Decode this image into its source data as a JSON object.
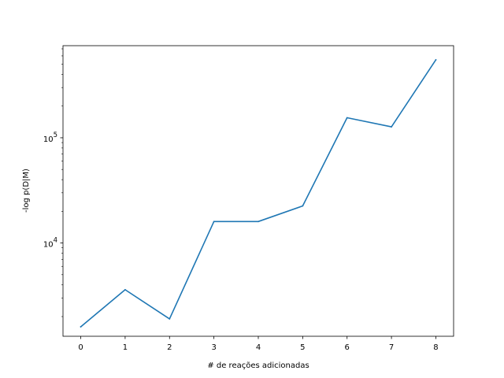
{
  "chart_data": {
    "type": "line",
    "title": "",
    "xlabel": "# de reações adicionadas",
    "ylabel": "-log p(D|M)",
    "yscale": "log",
    "grid": false,
    "xlim": [
      -0.4,
      8.4
    ],
    "ylim": [
      1300,
      750000
    ],
    "x_ticks": [
      0,
      1,
      2,
      3,
      4,
      5,
      6,
      7,
      8
    ],
    "y_major_ticks": [
      {
        "value": 10000,
        "base": "10",
        "exp": "4"
      },
      {
        "value": 100000,
        "base": "10",
        "exp": "5"
      }
    ],
    "series": [
      {
        "color": "#1f77b4",
        "x": [
          0,
          1,
          2,
          3,
          4,
          5,
          6,
          7,
          8
        ],
        "values": [
          1600,
          3600,
          1900,
          16000,
          16000,
          22500,
          155000,
          127000,
          550000
        ]
      }
    ]
  }
}
